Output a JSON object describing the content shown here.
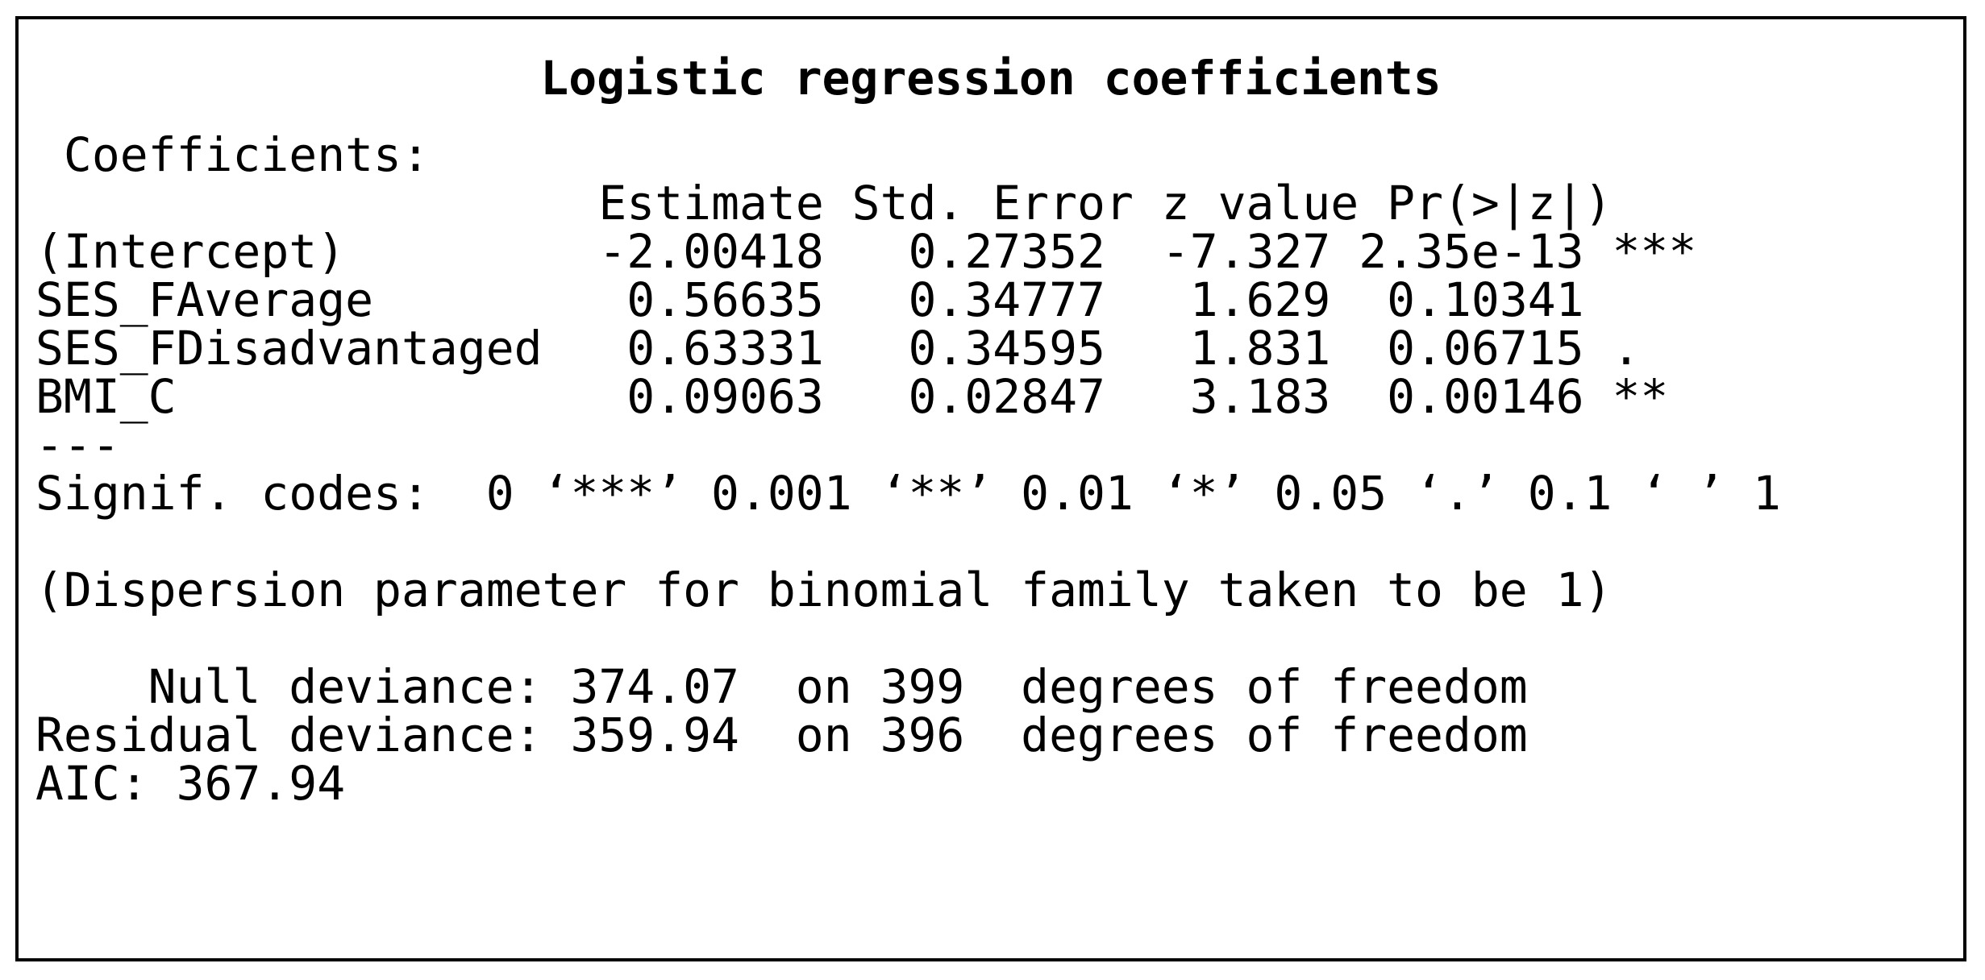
{
  "title": "Logistic regression coefficients",
  "coefficients_label": " Coefficients:",
  "header": {
    "indent": "                    ",
    "estimate": "Estimate",
    "std_error": "Std. Error",
    "z_value": "z value",
    "p_value": "Pr(>|z|)"
  },
  "rows": [
    {
      "term": "(Intercept)         ",
      "estimate": "-2.00418",
      "std_error": "   0.27352",
      "z_value": "  -7.327",
      "p_value": "2.35e-13",
      "signif": " ***"
    },
    {
      "term": "SES_FAverage        ",
      "estimate": " 0.56635",
      "std_error": "   0.34777",
      "z_value": "   1.629",
      "p_value": " 0.10341",
      "signif": ""
    },
    {
      "term": "SES_FDisadvantaged  ",
      "estimate": " 0.63331",
      "std_error": "   0.34595",
      "z_value": "   1.831",
      "p_value": " 0.06715",
      "signif": " ."
    },
    {
      "term": "BMI_C               ",
      "estimate": " 0.09063",
      "std_error": "   0.02847",
      "z_value": "   3.183",
      "p_value": " 0.00146",
      "signif": " **"
    }
  ],
  "separator": "---",
  "signif_codes": "Signif. codes:  0 ‘***’ 0.001 ‘**’ 0.01 ‘*’ 0.05 ‘.’ 0.1 ‘ ’ 1",
  "dispersion": "(Dispersion parameter for binomial family taken to be 1)",
  "null_deviance": "    Null deviance: 374.07  on 399  degrees of freedom",
  "residual_deviance": "Residual deviance: 359.94  on 396  degrees of freedom",
  "aic": "AIC: 367.94"
}
